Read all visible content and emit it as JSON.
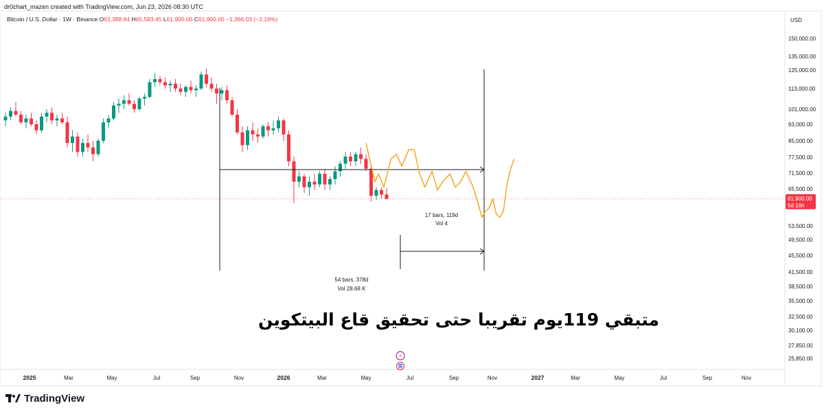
{
  "header": {
    "creator_line": "dr0chart_mazen created with TradingView.com, Jun 23, 2026 08:30 UTC"
  },
  "legend": {
    "symbol": "Bitcoin / U.S. Dollar · 1W · Binance",
    "o_label": "O",
    "o_value": "63,388.84",
    "h_label": "H",
    "h_value": "65,583.45",
    "l_label": "L",
    "l_value": "61,900.00",
    "c_label": "C",
    "c_value": "61,900.00",
    "change": "−1,366.03 (−2.16%)"
  },
  "price_axis": {
    "currency": "USD",
    "ticks": [
      "150,000.00",
      "135,000.00",
      "125,000.00",
      "113,000.00",
      "101,000.00",
      "93,000.00",
      "85,000.00",
      "77,500.00",
      "71,500.00",
      "65,500.00",
      "53,500.00",
      "49,500.00",
      "45,500.00",
      "41,500.00",
      "38,500.00",
      "35,500.00",
      "32,500.00",
      "30,100.00",
      "27,850.00",
      "25,850.00"
    ],
    "current_price": "61,900.00",
    "countdown": "5d 16h"
  },
  "time_axis": {
    "ticks": [
      "2025",
      "Mar",
      "May",
      "Jul",
      "Sep",
      "Nov",
      "2026",
      "Mar",
      "May",
      "Jul",
      "Sep",
      "Nov",
      "2027",
      "Mar",
      "May",
      "Jul",
      "Sep",
      "Nov"
    ]
  },
  "measure_1": {
    "bars": "54 bars, 378d",
    "vol": "Vol 28.68 K"
  },
  "measure_2": {
    "bars": "17 bars, 119d",
    "vol": "Vol 4"
  },
  "annotation": "متبقي 119يوم  تقريبا  حتى تحقيق قاع البيتكوين",
  "branding": {
    "logo_text": "TradingView"
  },
  "colors": {
    "up": "#089981",
    "down": "#f23645",
    "projection": "#f5a623",
    "price_label_bg": "#f23645",
    "axis_text": "#131722"
  },
  "chart_data": {
    "type": "candlestick",
    "series": [
      {
        "name": "Bitcoin / U.S. Dollar",
        "interval": "1W",
        "approximate_ohlc": [
          [
            95000,
            99000,
            92000,
            97000
          ],
          [
            97000,
            102000,
            95000,
            100000
          ],
          [
            100000,
            105000,
            97000,
            98000
          ],
          [
            98000,
            100000,
            93000,
            94000
          ],
          [
            94000,
            98000,
            91000,
            96000
          ],
          [
            96000,
            99000,
            92000,
            93000
          ],
          [
            93000,
            95000,
            88000,
            90000
          ],
          [
            90000,
            99000,
            89000,
            97000
          ],
          [
            97000,
            101000,
            94000,
            99000
          ],
          [
            99000,
            102000,
            93000,
            95000
          ],
          [
            95000,
            98000,
            92000,
            96000
          ],
          [
            96000,
            99000,
            93000,
            94000
          ],
          [
            94000,
            97000,
            82000,
            84000
          ],
          [
            84000,
            90000,
            80000,
            87000
          ],
          [
            87000,
            89000,
            78000,
            80000
          ],
          [
            80000,
            86000,
            78000,
            84000
          ],
          [
            84000,
            88000,
            80000,
            82000
          ],
          [
            82000,
            85000,
            76000,
            79000
          ],
          [
            79000,
            86000,
            78000,
            85000
          ],
          [
            85000,
            96000,
            84000,
            94000
          ],
          [
            94000,
            98000,
            91000,
            96000
          ],
          [
            96000,
            105000,
            95000,
            103000
          ],
          [
            103000,
            107000,
            99000,
            104000
          ],
          [
            104000,
            109000,
            101000,
            106000
          ],
          [
            106000,
            110000,
            103000,
            104000
          ],
          [
            104000,
            106000,
            99000,
            101000
          ],
          [
            101000,
            108000,
            100000,
            107000
          ],
          [
            107000,
            110000,
            103000,
            108000
          ],
          [
            108000,
            119000,
            107000,
            117000
          ],
          [
            117000,
            123000,
            114000,
            119000
          ],
          [
            119000,
            121000,
            115000,
            117000
          ],
          [
            117000,
            120000,
            113000,
            115000
          ],
          [
            115000,
            118000,
            111000,
            116000
          ],
          [
            116000,
            119000,
            111000,
            113000
          ],
          [
            113000,
            116000,
            109000,
            111000
          ],
          [
            111000,
            115000,
            108000,
            114000
          ],
          [
            114000,
            118000,
            110000,
            112000
          ],
          [
            112000,
            115000,
            108000,
            113000
          ],
          [
            113000,
            124000,
            112000,
            122000
          ],
          [
            122000,
            126000,
            114000,
            116000
          ],
          [
            116000,
            120000,
            111000,
            113000
          ],
          [
            113000,
            116000,
            104000,
            110000
          ],
          [
            110000,
            114000,
            106000,
            112000
          ],
          [
            112000,
            115000,
            104000,
            106000
          ],
          [
            106000,
            108000,
            97000,
            98000
          ],
          [
            98000,
            101000,
            88000,
            89000
          ],
          [
            89000,
            92000,
            80000,
            83000
          ],
          [
            83000,
            92000,
            81000,
            90000
          ],
          [
            90000,
            94000,
            85000,
            88000
          ],
          [
            88000,
            91000,
            84000,
            87000
          ],
          [
            87000,
            93000,
            86000,
            92000
          ],
          [
            92000,
            94000,
            87000,
            90000
          ],
          [
            90000,
            95000,
            88000,
            91000
          ],
          [
            91000,
            97000,
            89000,
            95000
          ],
          [
            95000,
            96000,
            85000,
            88000
          ],
          [
            88000,
            90000,
            74000,
            76000
          ],
          [
            76000,
            78000,
            60500,
            68000
          ],
          [
            68000,
            72000,
            66000,
            70000
          ],
          [
            70000,
            71000,
            64000,
            66000
          ],
          [
            66000,
            70000,
            63000,
            68000
          ],
          [
            68000,
            71000,
            65000,
            67000
          ],
          [
            67000,
            72000,
            66000,
            71000
          ],
          [
            71000,
            73000,
            65000,
            67000
          ],
          [
            67000,
            70000,
            65000,
            69000
          ],
          [
            69000,
            74000,
            67000,
            72000
          ],
          [
            72000,
            76000,
            70000,
            75000
          ],
          [
            75000,
            80000,
            73000,
            78000
          ],
          [
            78000,
            80000,
            74000,
            76000
          ],
          [
            76000,
            80000,
            74000,
            79000
          ],
          [
            79000,
            82000,
            75000,
            77000
          ],
          [
            77000,
            79000,
            72000,
            73000
          ],
          [
            73000,
            74000,
            61000,
            63000
          ],
          [
            63000,
            66000,
            61500,
            65000
          ],
          [
            65000,
            66000,
            62000,
            63400
          ],
          [
            63400,
            65600,
            61900,
            61900
          ]
        ]
      }
    ],
    "projection_path": [
      [
        84000,
        0
      ],
      [
        77000,
        2
      ],
      [
        68000,
        5
      ],
      [
        71000,
        7
      ],
      [
        66000,
        10
      ],
      [
        77000,
        14
      ],
      [
        79000,
        17
      ],
      [
        74000,
        20
      ],
      [
        81000,
        24
      ],
      [
        81000,
        27
      ],
      [
        71000,
        30
      ],
      [
        66000,
        33
      ],
      [
        72000,
        37
      ],
      [
        65000,
        40
      ],
      [
        68000,
        43
      ],
      [
        71000,
        47
      ],
      [
        66000,
        50
      ],
      [
        68000,
        53
      ],
      [
        72000,
        56
      ],
      [
        66000,
        60
      ],
      [
        60000,
        63
      ],
      [
        56000,
        65
      ],
      [
        58000,
        67
      ],
      [
        59000,
        69
      ],
      [
        62000,
        71
      ],
      [
        57000,
        73
      ],
      [
        56000,
        75
      ],
      [
        58000,
        77
      ],
      [
        67000,
        79
      ],
      [
        73000,
        81
      ],
      [
        77000,
        83
      ]
    ],
    "measurements": [
      {
        "label": "54 bars, 378d",
        "vol": "Vol 28.68 K"
      },
      {
        "label": "17 bars, 119d",
        "vol": "Vol 4"
      }
    ],
    "last_price": 61900
  }
}
